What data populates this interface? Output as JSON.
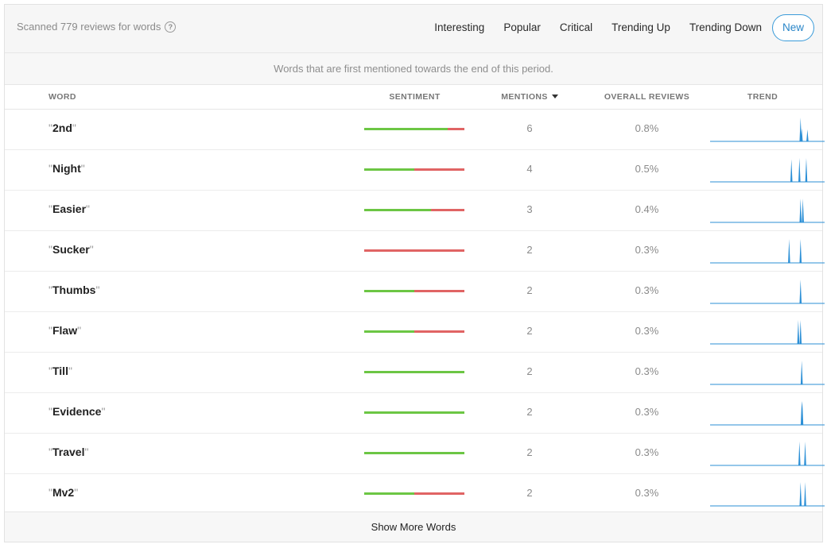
{
  "header": {
    "scanned_text": "Scanned 779 reviews for words",
    "help_icon": "question-circle-icon",
    "tabs": [
      "Interesting",
      "Popular",
      "Critical",
      "Trending Up",
      "Trending Down",
      "New"
    ],
    "active_tab": "New"
  },
  "description": "Words that are first mentioned towards the end of this period.",
  "columns": {
    "word": "WORD",
    "sentiment": "SENTIMENT",
    "mentions": "MENTIONS",
    "overall": "OVERALL REVIEWS",
    "trend": "TREND"
  },
  "colors": {
    "positive": "#6cc644",
    "negative": "#e06464",
    "trend": "#2b8fd6",
    "accent": "#3a9bd9"
  },
  "rows": [
    {
      "word": "2nd",
      "positive_fraction": 0.83,
      "mentions": "6",
      "overall": "0.8%",
      "spikes": [
        [
          0.79,
          1.0
        ],
        [
          0.8,
          0.55
        ],
        [
          0.85,
          0.5
        ]
      ]
    },
    {
      "word": "Night",
      "positive_fraction": 0.5,
      "mentions": "4",
      "overall": "0.5%",
      "spikes": [
        [
          0.71,
          0.95
        ],
        [
          0.78,
          1.0
        ],
        [
          0.84,
          1.0
        ]
      ]
    },
    {
      "word": "Easier",
      "positive_fraction": 0.67,
      "mentions": "3",
      "overall": "0.4%",
      "spikes": [
        [
          0.79,
          1.0
        ],
        [
          0.81,
          1.0
        ]
      ]
    },
    {
      "word": "Sucker",
      "positive_fraction": 0.0,
      "mentions": "2",
      "overall": "0.3%",
      "spikes": [
        [
          0.69,
          1.0
        ],
        [
          0.79,
          1.0
        ]
      ]
    },
    {
      "word": "Thumbs",
      "positive_fraction": 0.5,
      "mentions": "2",
      "overall": "0.3%",
      "spikes": [
        [
          0.79,
          1.0
        ]
      ]
    },
    {
      "word": "Flaw",
      "positive_fraction": 0.5,
      "mentions": "2",
      "overall": "0.3%",
      "spikes": [
        [
          0.77,
          1.0
        ],
        [
          0.79,
          1.0
        ]
      ]
    },
    {
      "word": "Till",
      "positive_fraction": 1.0,
      "mentions": "2",
      "overall": "0.3%",
      "spikes": [
        [
          0.8,
          1.0
        ]
      ]
    },
    {
      "word": "Evidence",
      "positive_fraction": 1.0,
      "mentions": "2",
      "overall": "0.3%",
      "spikes": [
        [
          0.8,
          1.0
        ],
        [
          0.805,
          1.0
        ]
      ]
    },
    {
      "word": "Travel",
      "positive_fraction": 1.0,
      "mentions": "2",
      "overall": "0.3%",
      "spikes": [
        [
          0.78,
          1.0
        ],
        [
          0.83,
          1.0
        ]
      ]
    },
    {
      "word": "Mv2",
      "positive_fraction": 0.5,
      "mentions": "2",
      "overall": "0.3%",
      "spikes": [
        [
          0.79,
          1.0
        ],
        [
          0.83,
          1.0
        ]
      ]
    }
  ],
  "footer": {
    "show_more": "Show More Words"
  }
}
